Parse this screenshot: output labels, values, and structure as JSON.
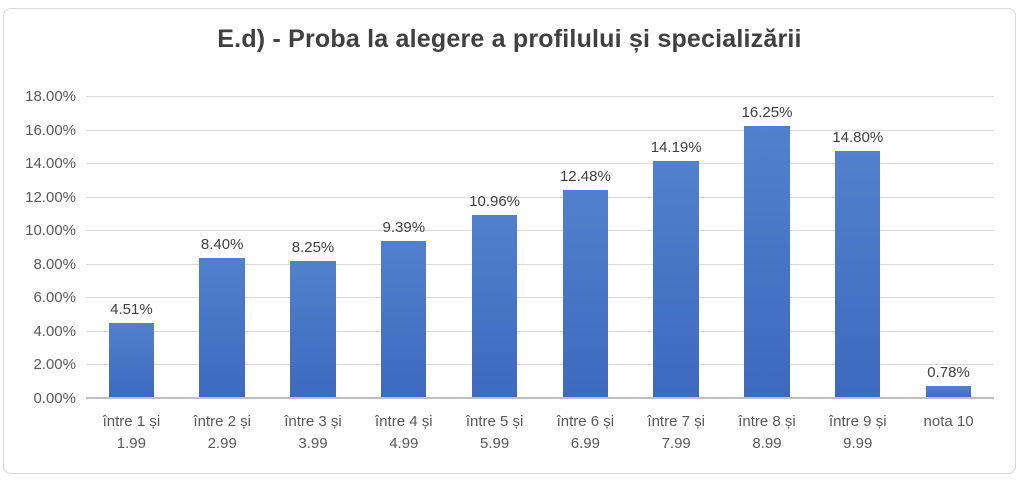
{
  "chart_data": {
    "type": "bar",
    "title": "E.d) - Proba la alegere a profilului și specializării",
    "categories": [
      "între 1 și 1.99",
      "între 2 și 2.99",
      "între 3 și 3.99",
      "între 4 și 4.99",
      "între 5 și 5.99",
      "între 6 și 6.99",
      "între 7 și 7.99",
      "între 8 și 8.99",
      "între 9 și 9.99",
      "nota 10"
    ],
    "category_lines": [
      [
        "între 1 și",
        "1.99"
      ],
      [
        "între 2 și",
        "2.99"
      ],
      [
        "între 3 și",
        "3.99"
      ],
      [
        "între 4 și",
        "4.99"
      ],
      [
        "între 5 și",
        "5.99"
      ],
      [
        "între 6 și",
        "6.99"
      ],
      [
        "între 7 și",
        "7.99"
      ],
      [
        "între 8 și",
        "8.99"
      ],
      [
        "între 9 și",
        "9.99"
      ],
      [
        "nota 10"
      ]
    ],
    "values": [
      4.51,
      8.4,
      8.25,
      9.39,
      10.96,
      12.48,
      14.19,
      16.25,
      14.8,
      0.78
    ],
    "data_labels": [
      "4.51%",
      "8.40%",
      "8.25%",
      "9.39%",
      "10.96%",
      "12.48%",
      "14.19%",
      "16.25%",
      "14.80%",
      "0.78%"
    ],
    "xlabel": "",
    "ylabel": "",
    "ylim": [
      0,
      18
    ],
    "ytick_step": 2,
    "ytick_labels": [
      "0.00%",
      "2.00%",
      "4.00%",
      "6.00%",
      "8.00%",
      "10.00%",
      "12.00%",
      "14.00%",
      "16.00%",
      "18.00%"
    ],
    "grid": "horizontal",
    "legend": "none",
    "colors": {
      "bar_top": "#5181cd",
      "bar_bottom": "#3d69be",
      "title": "#404040",
      "data_label": "#404040",
      "axis_label": "#595959",
      "gridline": "#d9d9d9",
      "axis_line": "#bfbfbf",
      "frame_border": "#d9d9d9",
      "background": "#ffffff"
    }
  }
}
